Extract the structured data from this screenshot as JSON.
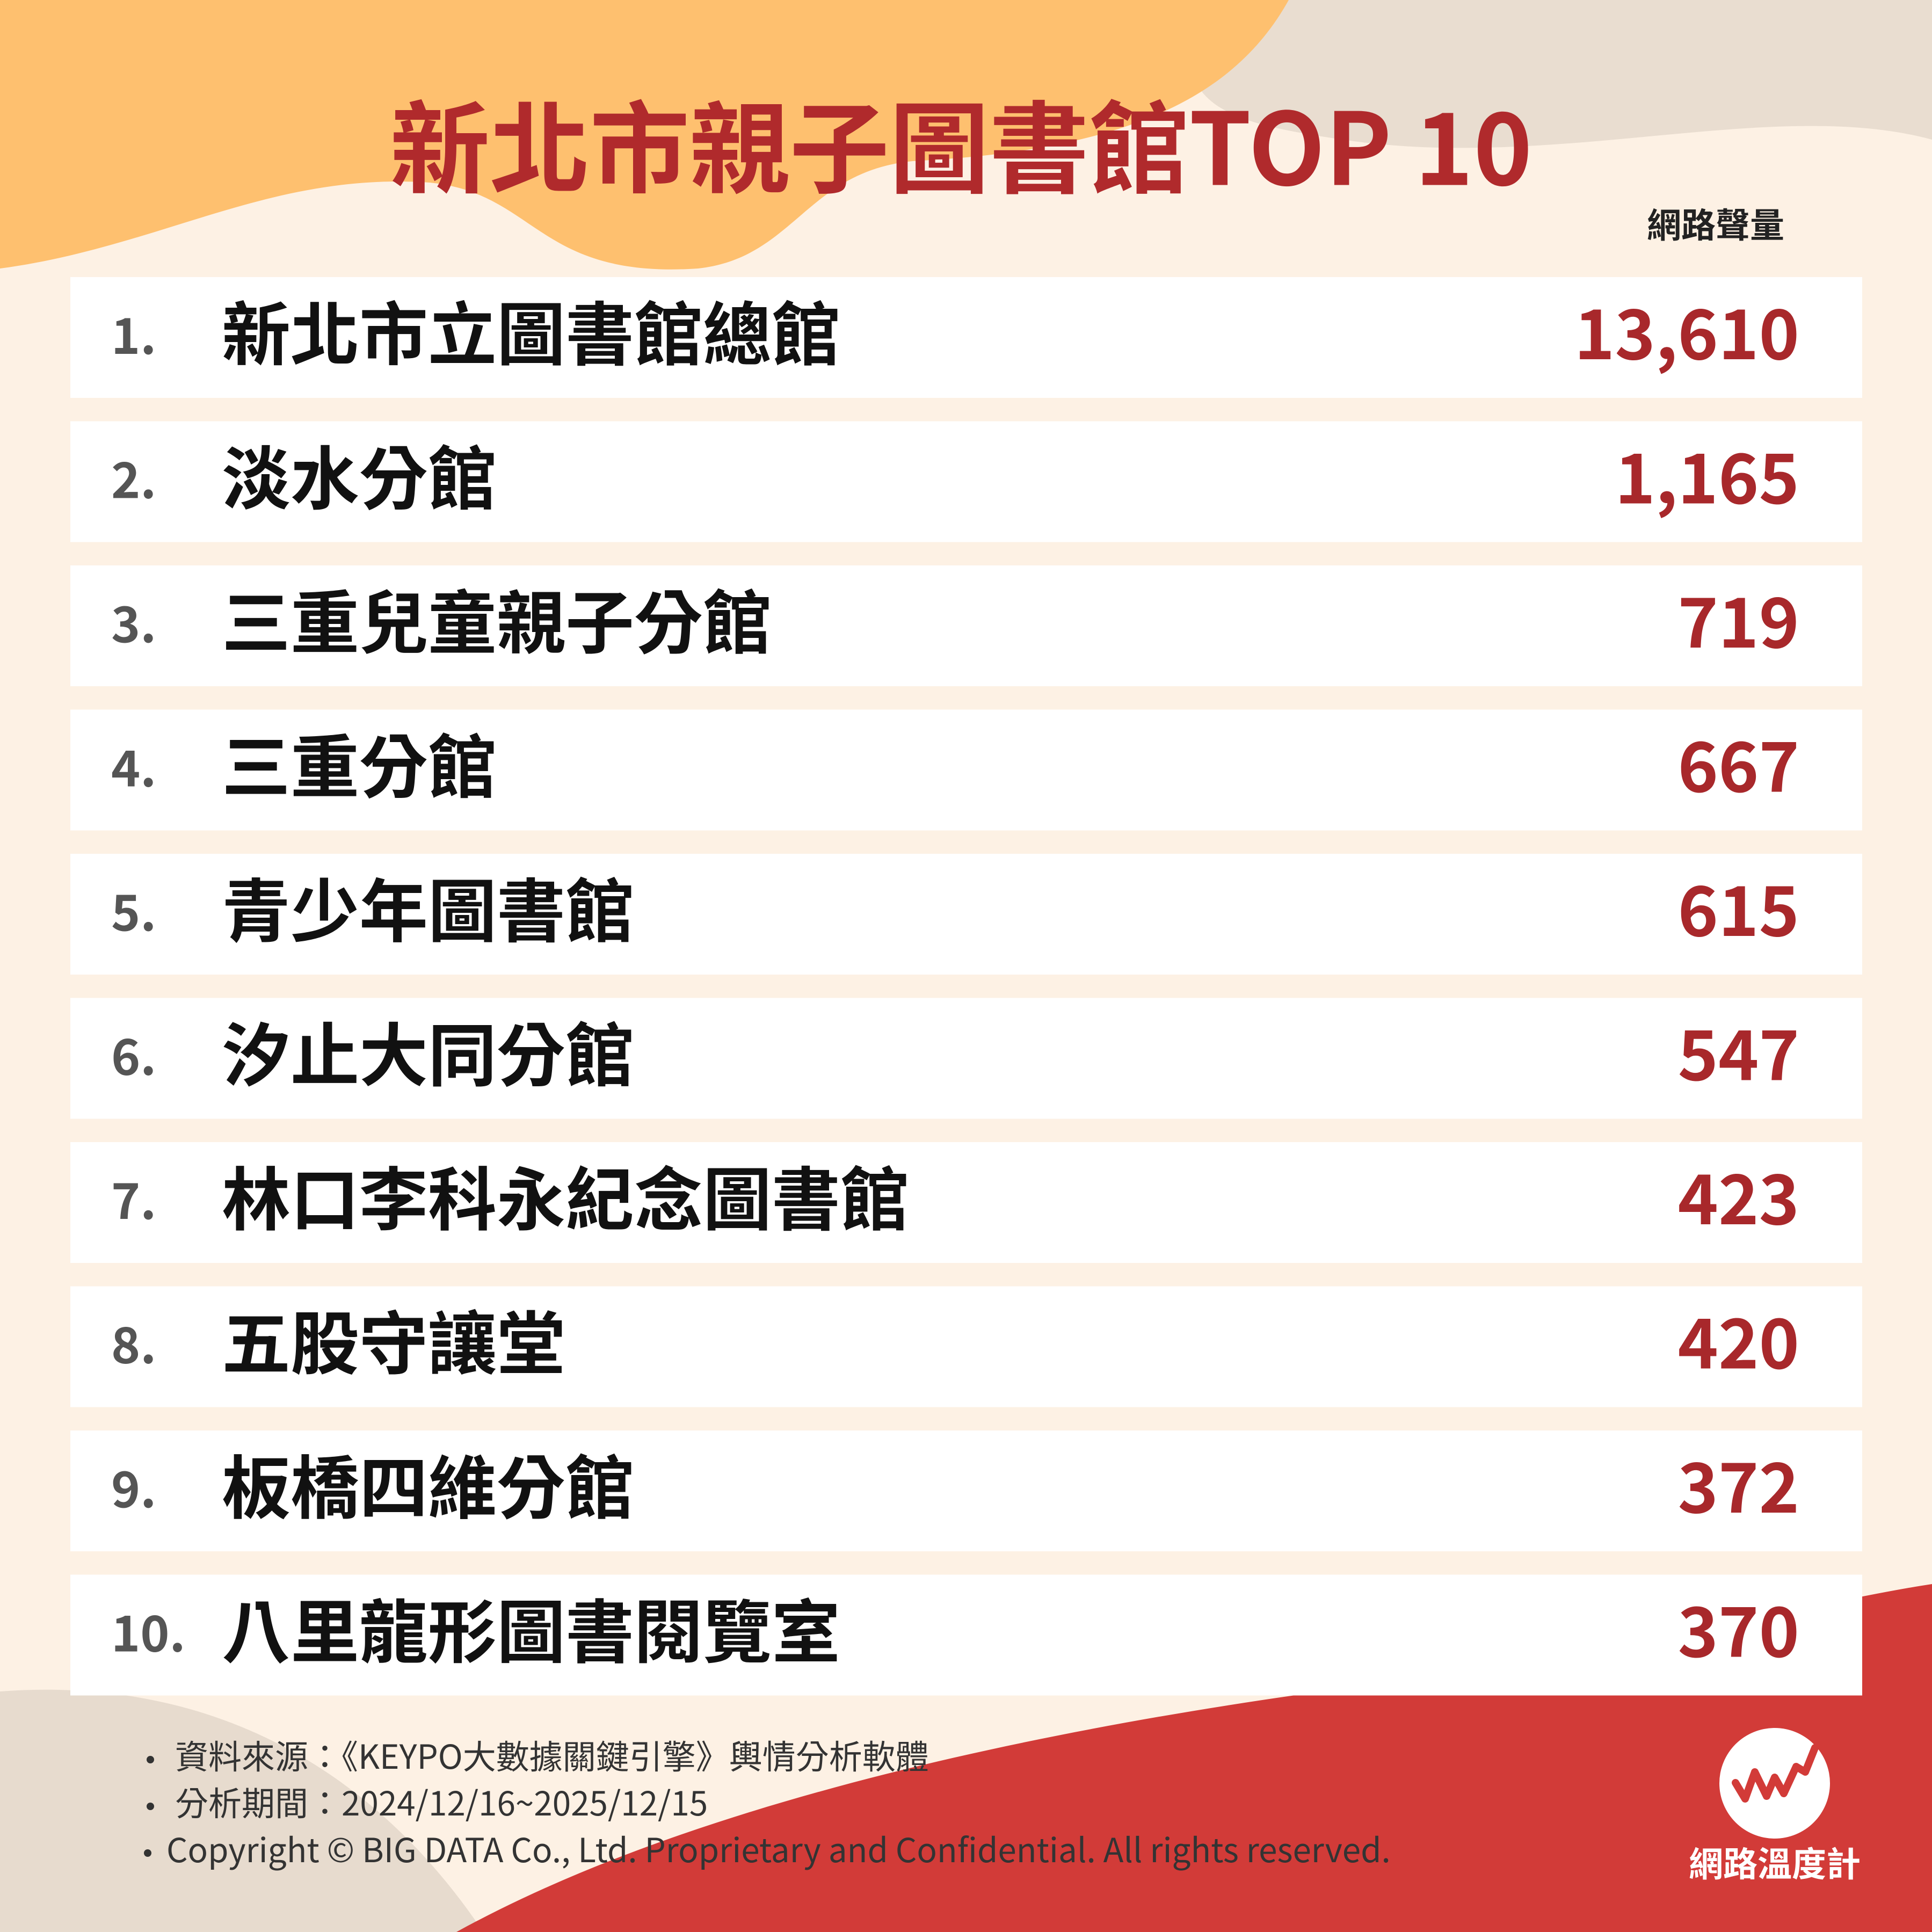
{
  "header": {
    "title": "新北市親子圖書館TOP 10",
    "column_label": "網路聲量"
  },
  "table": {
    "rows": [
      [
        "1.",
        "新北市立圖書館總館",
        "13,610"
      ],
      [
        "2.",
        "淡水分館",
        "1,165"
      ],
      [
        "3.",
        "三重兒童親子分館",
        "719"
      ],
      [
        "4.",
        "三重分館",
        "667"
      ],
      [
        "5.",
        "青少年圖書館",
        "615"
      ],
      [
        "6.",
        "汐止大同分館",
        "547"
      ],
      [
        "7.",
        "林口李科永紀念圖書館",
        "423"
      ],
      [
        "8.",
        "五股守讓堂",
        "420"
      ],
      [
        "9.",
        "板橋四維分館",
        "372"
      ],
      [
        "10.",
        "八里龍形圖書閱覽室",
        "370"
      ]
    ]
  },
  "footer": {
    "notes": [
      "資料來源：《KEYPO大數據關鍵引擎》輿情分析軟體",
      "分析期間：2024/12/16~2025/12/15",
      "Copyright © BIG DATA Co., Ltd. Proprietary and Confidential. All rights reserved."
    ],
    "logo_text": "網路溫度計"
  }
}
